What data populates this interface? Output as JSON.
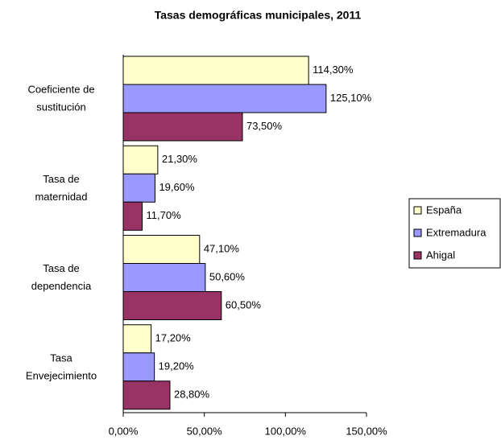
{
  "chart_data": {
    "type": "hbar",
    "title": "Tasas demográficas municipales, 2011",
    "categories": [
      "Coeficiente de\nsustitución",
      "Tasa de\nmaternidad",
      "Tasa de\ndependencia",
      "Tasa\nEnvejecimiento"
    ],
    "series": [
      {
        "name": "España",
        "color": "#ffffcc",
        "values": [
          114.3,
          21.3,
          47.1,
          17.2
        ],
        "value_labels": [
          "114,30%",
          "21,30%",
          "47,10%",
          "17,20%"
        ]
      },
      {
        "name": "Extremadura",
        "color": "#9999ff",
        "values": [
          125.1,
          19.6,
          50.6,
          19.2
        ],
        "value_labels": [
          "125,10%",
          "19,60%",
          "50,60%",
          "19,20%"
        ]
      },
      {
        "name": "Ahigal",
        "color": "#993366",
        "values": [
          73.5,
          11.7,
          60.5,
          28.8
        ],
        "value_labels": [
          "73,50%",
          "11,70%",
          "60,50%",
          "28,80%"
        ]
      }
    ],
    "xlim": [
      0,
      150
    ],
    "xticks": [
      {
        "value": 0,
        "label": "0,00%"
      },
      {
        "value": 50,
        "label": "50,00%"
      },
      {
        "value": 100,
        "label": "100,00%"
      },
      {
        "value": 150,
        "label": "150,00%"
      }
    ],
    "legend": "right"
  }
}
